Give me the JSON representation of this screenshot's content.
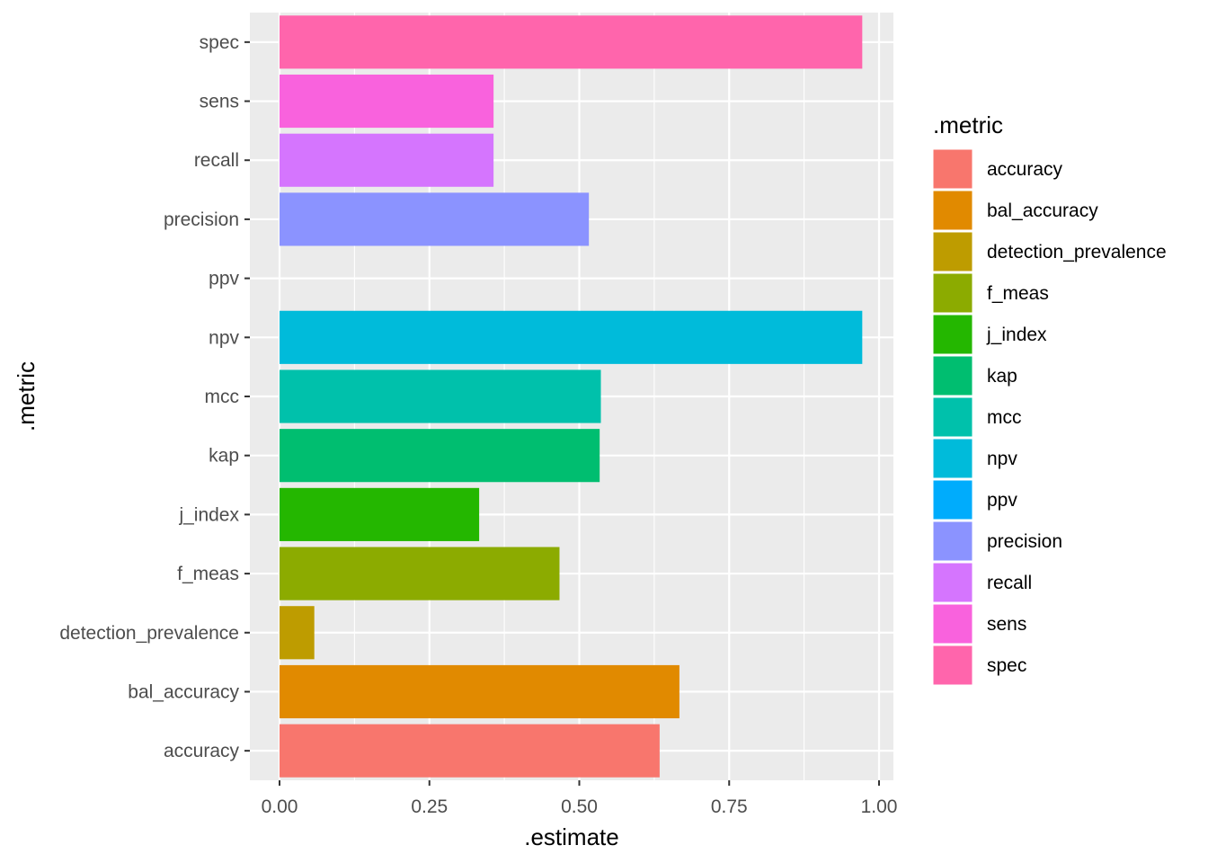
{
  "chart_data": {
    "type": "bar",
    "orientation": "horizontal",
    "xlabel": ".estimate",
    "ylabel": ".metric",
    "xlim": [
      0,
      1
    ],
    "x_ticks": [
      0.0,
      0.25,
      0.5,
      0.75,
      1.0
    ],
    "x_tick_labels": [
      "0.00",
      "0.25",
      "0.50",
      "0.75",
      "1.00"
    ],
    "categories": [
      "accuracy",
      "bal_accuracy",
      "detection_prevalence",
      "f_meas",
      "j_index",
      "kap",
      "mcc",
      "npv",
      "ppv",
      "precision",
      "recall",
      "sens",
      "spec"
    ],
    "values": [
      0.634,
      0.667,
      0.058,
      0.467,
      0.333,
      0.534,
      0.536,
      0.972,
      null,
      0.516,
      0.357,
      0.357,
      0.972
    ],
    "colors": [
      "#F8766D",
      "#E18A00",
      "#BE9C00",
      "#8CAB00",
      "#24B700",
      "#00BE70",
      "#00C1AB",
      "#00BBDA",
      "#00ACFC",
      "#8B93FF",
      "#D575FE",
      "#F962DD",
      "#FF65AC"
    ],
    "legend": {
      "title": ".metric",
      "position": "right",
      "entries": [
        "accuracy",
        "bal_accuracy",
        "detection_prevalence",
        "f_meas",
        "j_index",
        "kap",
        "mcc",
        "npv",
        "ppv",
        "precision",
        "recall",
        "sens",
        "spec"
      ]
    },
    "grid": true,
    "panel_background": "#EBEBEB"
  }
}
